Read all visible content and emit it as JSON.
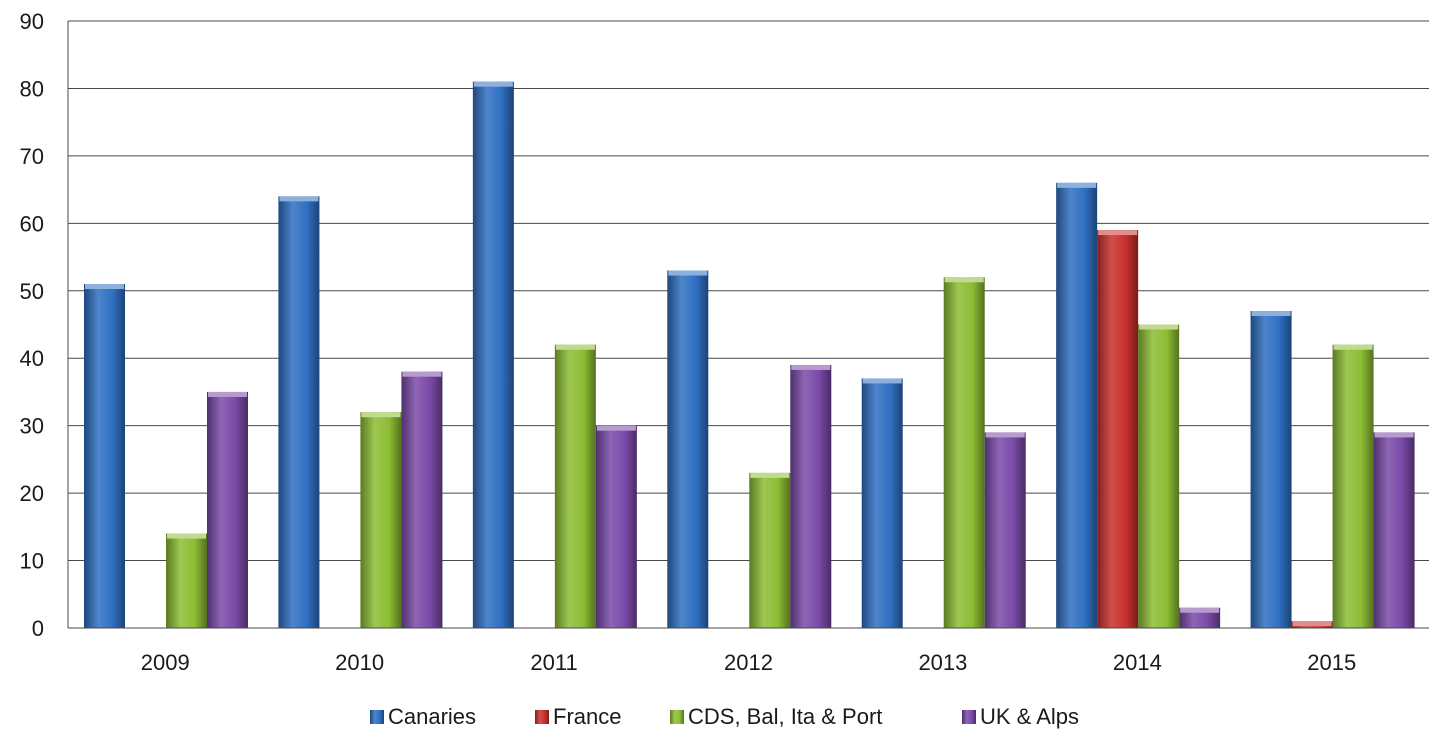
{
  "chart_data": {
    "type": "bar",
    "categories": [
      "2009",
      "2010",
      "2011",
      "2012",
      "2013",
      "2014",
      "2015"
    ],
    "series": [
      {
        "name": "Canaries",
        "color": "#2f6fc2",
        "values": [
          51,
          64,
          81,
          53,
          37,
          66,
          47
        ]
      },
      {
        "name": "France",
        "color": "#c8302c",
        "values": [
          0,
          0,
          0,
          0,
          0,
          59,
          1
        ]
      },
      {
        "name": "CDS, Bal, Ita & Port",
        "color": "#8cbd33",
        "values": [
          14,
          32,
          42,
          23,
          52,
          45,
          42
        ]
      },
      {
        "name": "UK & Alps",
        "color": "#7a4aa8",
        "values": [
          35,
          38,
          30,
          39,
          29,
          3,
          29
        ]
      }
    ],
    "ylim": [
      0,
      90
    ],
    "yticks": [
      "0",
      "10",
      "20",
      "30",
      "40",
      "50",
      "60",
      "70",
      "80",
      "90"
    ],
    "grid": true,
    "legend_position": "bottom",
    "title": "",
    "xlabel": "",
    "ylabel": ""
  }
}
